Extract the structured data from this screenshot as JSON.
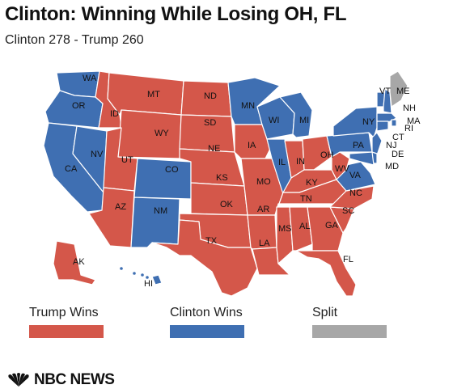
{
  "header": {
    "title": "Clinton: Winning While Losing OH, FL",
    "subtitle": "Clinton 278 - Trump 260"
  },
  "colors": {
    "trump": "#d4574a",
    "clinton": "#3f6fb2",
    "split": "#a7a7a7",
    "border": "#ffffff"
  },
  "legend": [
    {
      "label": "Trump Wins",
      "color_key": "trump"
    },
    {
      "label": "Clinton Wins",
      "color_key": "clinton"
    },
    {
      "label": "Split",
      "color_key": "split"
    }
  ],
  "map": {
    "states": [
      {
        "abbr": "WA",
        "winner": "clinton"
      },
      {
        "abbr": "OR",
        "winner": "clinton"
      },
      {
        "abbr": "CA",
        "winner": "clinton"
      },
      {
        "abbr": "NV",
        "winner": "clinton"
      },
      {
        "abbr": "ID",
        "winner": "trump"
      },
      {
        "abbr": "MT",
        "winner": "trump"
      },
      {
        "abbr": "WY",
        "winner": "trump"
      },
      {
        "abbr": "UT",
        "winner": "trump"
      },
      {
        "abbr": "CO",
        "winner": "clinton"
      },
      {
        "abbr": "AZ",
        "winner": "trump"
      },
      {
        "abbr": "NM",
        "winner": "clinton"
      },
      {
        "abbr": "ND",
        "winner": "trump"
      },
      {
        "abbr": "SD",
        "winner": "trump"
      },
      {
        "abbr": "NE",
        "winner": "trump"
      },
      {
        "abbr": "KS",
        "winner": "trump"
      },
      {
        "abbr": "OK",
        "winner": "trump"
      },
      {
        "abbr": "TX",
        "winner": "trump"
      },
      {
        "abbr": "MN",
        "winner": "clinton"
      },
      {
        "abbr": "IA",
        "winner": "trump"
      },
      {
        "abbr": "MO",
        "winner": "trump"
      },
      {
        "abbr": "AR",
        "winner": "trump"
      },
      {
        "abbr": "LA",
        "winner": "trump"
      },
      {
        "abbr": "WI",
        "winner": "clinton"
      },
      {
        "abbr": "IL",
        "winner": "clinton"
      },
      {
        "abbr": "MI",
        "winner": "clinton"
      },
      {
        "abbr": "IN",
        "winner": "trump"
      },
      {
        "abbr": "OH",
        "winner": "trump"
      },
      {
        "abbr": "KY",
        "winner": "trump"
      },
      {
        "abbr": "TN",
        "winner": "trump"
      },
      {
        "abbr": "MS",
        "winner": "trump"
      },
      {
        "abbr": "AL",
        "winner": "trump"
      },
      {
        "abbr": "GA",
        "winner": "trump"
      },
      {
        "abbr": "FL",
        "winner": "trump"
      },
      {
        "abbr": "SC",
        "winner": "trump"
      },
      {
        "abbr": "NC",
        "winner": "trump"
      },
      {
        "abbr": "VA",
        "winner": "clinton"
      },
      {
        "abbr": "WV",
        "winner": "trump"
      },
      {
        "abbr": "PA",
        "winner": "clinton"
      },
      {
        "abbr": "NY",
        "winner": "clinton"
      },
      {
        "abbr": "VT",
        "winner": "clinton"
      },
      {
        "abbr": "NH",
        "winner": "clinton"
      },
      {
        "abbr": "ME",
        "winner": "split"
      },
      {
        "abbr": "MA",
        "winner": "clinton"
      },
      {
        "abbr": "RI",
        "winner": "clinton"
      },
      {
        "abbr": "CT",
        "winner": "clinton"
      },
      {
        "abbr": "NJ",
        "winner": "clinton"
      },
      {
        "abbr": "DE",
        "winner": "clinton"
      },
      {
        "abbr": "MD",
        "winner": "clinton"
      },
      {
        "abbr": "AK",
        "winner": "trump"
      },
      {
        "abbr": "HI",
        "winner": "clinton"
      }
    ]
  },
  "footer": {
    "logo_text": "NBC NEWS",
    "logo_icon": "peacock-icon"
  }
}
